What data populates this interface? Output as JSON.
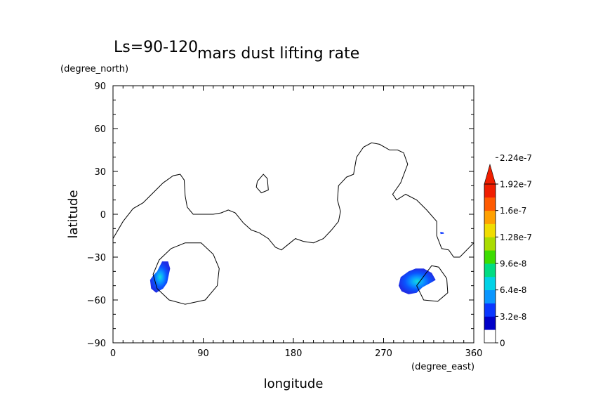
{
  "chart_data": {
    "type": "heatmap",
    "season_label": "Ls=90-120",
    "title": "mars dust lifting rate",
    "xlabel": "longitude",
    "ylabel": "latitude",
    "x_units": "(degree_east)",
    "y_units": "(degree_north)",
    "xlim": [
      0,
      360
    ],
    "ylim": [
      -90,
      90
    ],
    "x_ticks": [
      0,
      90,
      180,
      270,
      360
    ],
    "y_ticks": [
      90,
      60,
      30,
      0,
      -30,
      -60,
      -90
    ],
    "grid": false,
    "colorbar": {
      "placement": "right",
      "extend": "max",
      "levels": [
        "0",
        "3.2e-8",
        "6.4e-8",
        "9.6e-8",
        "1.28e-7",
        "1.6e-7",
        "1.92e-7",
        "2.24e-7"
      ],
      "colors": [
        "#ffffff",
        "#0000c8",
        "#0a37ff",
        "#0a96ff",
        "#00d2e6",
        "#00dc82",
        "#3cdc00",
        "#aadc00",
        "#f0dc00",
        "#ffa000",
        "#ff5a00",
        "#f01e00"
      ]
    },
    "topography_contour": [
      [
        [
          0,
          -17
        ],
        [
          10,
          -5
        ],
        [
          20,
          4
        ],
        [
          30,
          8
        ],
        [
          40,
          15
        ],
        [
          50,
          22
        ],
        [
          60,
          27
        ],
        [
          67,
          28
        ],
        [
          71,
          24
        ],
        [
          72,
          13
        ],
        [
          74,
          5
        ],
        [
          80,
          0
        ],
        [
          90,
          0
        ],
        [
          100,
          0
        ],
        [
          108,
          1
        ],
        [
          115,
          3
        ],
        [
          122,
          1
        ],
        [
          130,
          -6
        ],
        [
          138,
          -11
        ],
        [
          146,
          -13
        ],
        [
          155,
          -17
        ],
        [
          162,
          -23
        ],
        [
          168,
          -25
        ],
        [
          175,
          -21
        ],
        [
          182,
          -17
        ],
        [
          190,
          -19
        ],
        [
          200,
          -20
        ],
        [
          210,
          -17
        ],
        [
          218,
          -11
        ],
        [
          225,
          -5
        ],
        [
          227,
          2
        ],
        [
          224,
          10
        ],
        [
          225,
          20
        ],
        [
          233,
          26
        ],
        [
          240,
          28
        ],
        [
          243,
          40
        ],
        [
          250,
          47
        ],
        [
          258,
          50
        ],
        [
          266,
          49
        ],
        [
          276,
          45
        ],
        [
          284,
          45
        ],
        [
          290,
          43
        ],
        [
          294,
          35
        ],
        [
          287,
          22
        ],
        [
          279,
          14
        ],
        [
          283,
          10
        ],
        [
          292,
          14
        ],
        [
          303,
          10
        ],
        [
          313,
          3
        ],
        [
          323,
          -5
        ],
        [
          323,
          -15
        ],
        [
          328,
          -24
        ],
        [
          335,
          -25
        ],
        [
          340,
          -30
        ],
        [
          346,
          -30
        ],
        [
          360,
          -20
        ]
      ],
      [
        [
          144,
          23
        ],
        [
          150,
          28
        ],
        [
          154,
          25
        ],
        [
          155,
          17
        ],
        [
          148,
          15
        ],
        [
          143,
          19
        ],
        [
          144,
          23
        ]
      ],
      [
        [
          72,
          -20
        ],
        [
          88,
          -20
        ],
        [
          100,
          -28
        ],
        [
          106,
          -38
        ],
        [
          104,
          -50
        ],
        [
          92,
          -60
        ],
        [
          72,
          -63
        ],
        [
          56,
          -60
        ],
        [
          44,
          -52
        ],
        [
          40,
          -42
        ],
        [
          46,
          -32
        ],
        [
          58,
          -24
        ],
        [
          72,
          -20
        ]
      ],
      [
        [
          303,
          -50
        ],
        [
          318,
          -36
        ],
        [
          325,
          -37
        ],
        [
          333,
          -45
        ],
        [
          334,
          -55
        ],
        [
          324,
          -61
        ],
        [
          310,
          -60
        ],
        [
          303,
          -50
        ]
      ]
    ],
    "dust_patches": [
      {
        "center": [
          47,
          -46
        ],
        "peak_value": 1e-07
      },
      {
        "center": [
          305,
          -47
        ],
        "peak_value": 1.1e-07
      },
      {
        "center": [
          328,
          -13
        ],
        "peak_value": 4e-08
      }
    ]
  }
}
